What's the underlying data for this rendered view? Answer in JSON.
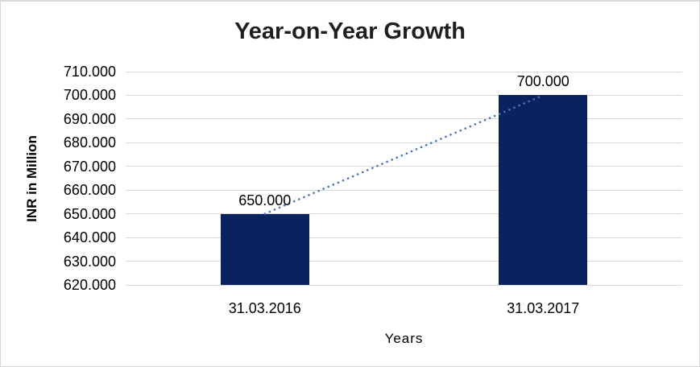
{
  "chart_data": {
    "type": "bar",
    "title": "Year-on-Year Growth",
    "xlabel": "Years",
    "ylabel": "INR in Million",
    "categories": [
      "31.03.2016",
      "31.03.2017"
    ],
    "values": [
      650000,
      700000
    ],
    "data_labels": [
      "650.000",
      "700.000"
    ],
    "y_axis": {
      "min": 620000,
      "max": 710000,
      "step": 10000,
      "tick_labels": [
        "620.000",
        "630.000",
        "640.000",
        "650.000",
        "660.000",
        "670.000",
        "680.000",
        "690.000",
        "700.000",
        "710.000"
      ]
    },
    "ylim": [
      620000,
      710000
    ],
    "legend": "none",
    "grid": "horizontal",
    "trendline": {
      "type": "linear",
      "style": "dotted",
      "connects_values": [
        650000,
        700000
      ]
    },
    "colors": {
      "bar": "#0A235F",
      "gridline": "#D9D9D9",
      "trendline": "#4472C4",
      "text": "#000000",
      "title_text": "#1F1F1F",
      "border": "#D6D6D6",
      "background": "#FFFFFF"
    }
  }
}
